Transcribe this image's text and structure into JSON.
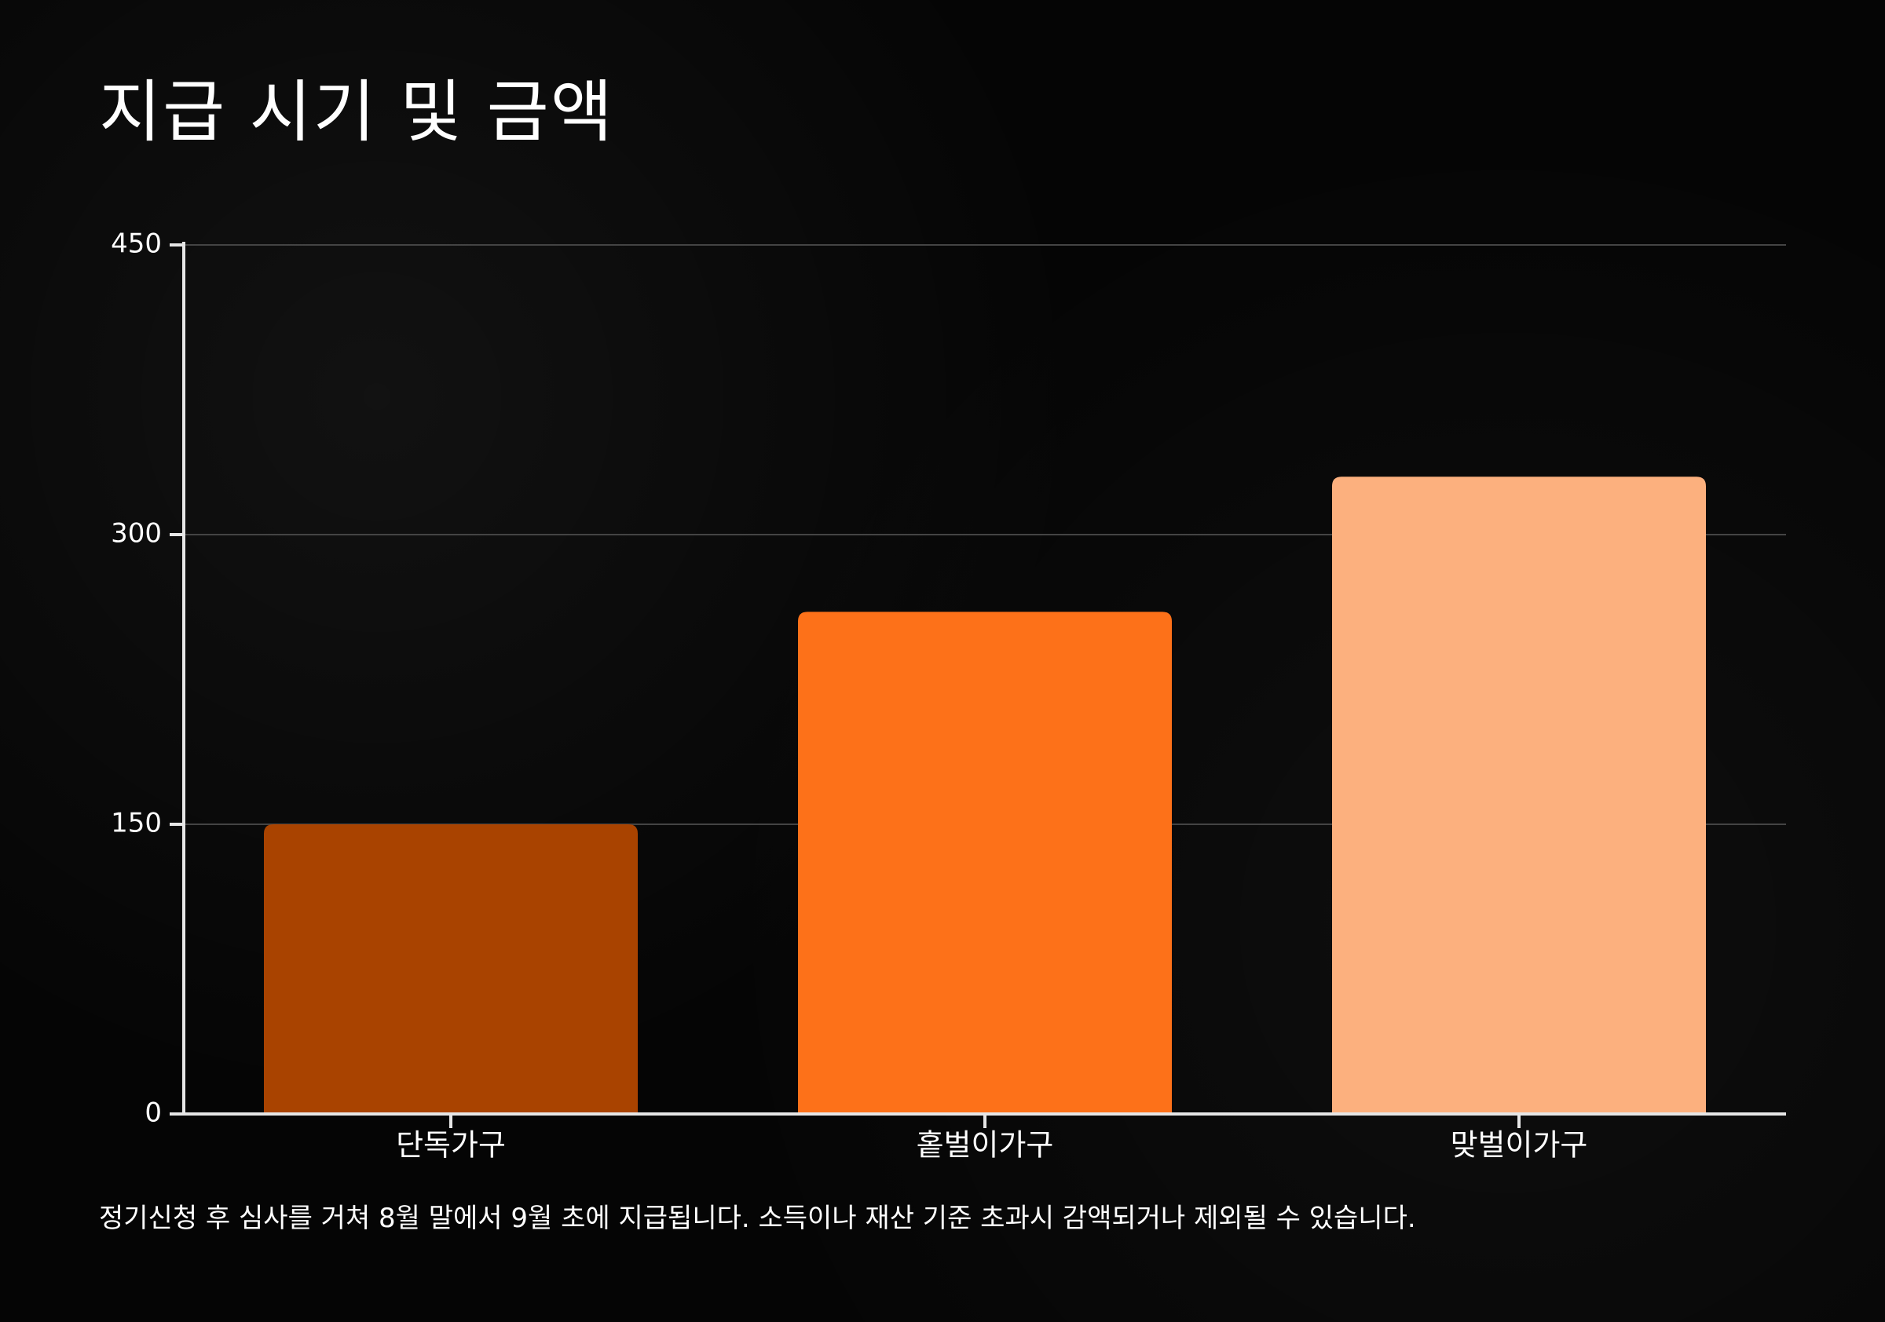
{
  "title": "지급 시기 및 금액",
  "note": "정기신청 후 심사를 거쳐 8월 말에서 9월 초에 지급됩니다. 소득이나 재산 기준 초과시 감액되거나 제외될 수 있습니다.",
  "chart_data": {
    "type": "bar",
    "title": "",
    "xlabel": "",
    "ylabel": "",
    "categories": [
      "단독가구",
      "홑벌이가구",
      "맞벌이가구"
    ],
    "values": [
      150,
      260,
      330
    ],
    "ylim": [
      0,
      450
    ],
    "yticks": [
      0,
      150,
      300,
      450
    ],
    "grid": true,
    "colors": [
      "#A94300",
      "#FD7119",
      "#FCB07E"
    ],
    "axis_color": "#e6e6e6",
    "grid_color": "#444444"
  }
}
